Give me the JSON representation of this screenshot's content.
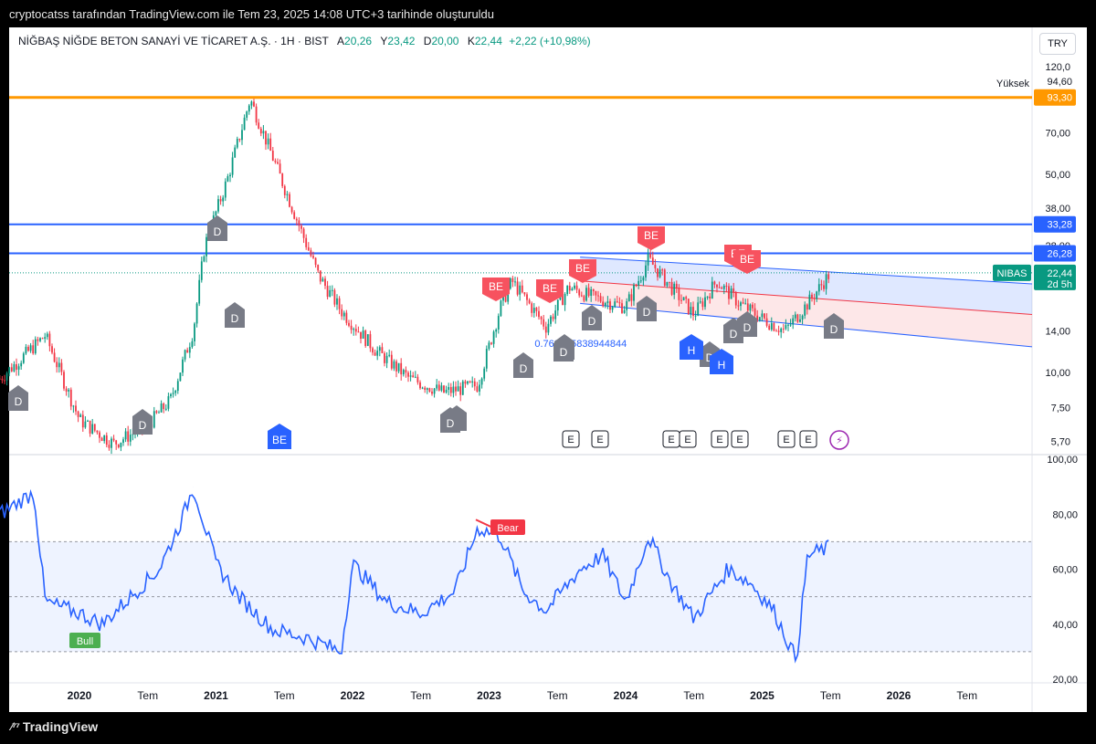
{
  "header": {
    "caption": "cryptocatss tarafından TradingView.com ile Tem 23, 2025 14:08 UTC+3 tarihinde oluşturuldu"
  },
  "symbol": {
    "name": "NİĞBAŞ NİĞDE BETON SANAYİ VE TİCARET A.Ş. · 1H · BIST",
    "o_label": "A",
    "o_value": "20,26",
    "h_label": "Y",
    "h_value": "23,42",
    "l_label": "D",
    "l_value": "20,00",
    "c_label": "K",
    "c_value": "22,44",
    "change": "+2,22 (+10,98%)",
    "currency": "TRY",
    "ticker": "NIBAS",
    "last_price": "22,44",
    "countdown": "2d 5h"
  },
  "price_axis": {
    "ticks": [
      "120,0",
      "70,00",
      "50,00",
      "38,00",
      "28,00",
      "14,00",
      "10,00",
      "7,50",
      "5,70"
    ],
    "high_label": "Yüksek",
    "high_value": "94,60",
    "orange_level": "93,30",
    "blue_level_1": "33,28",
    "blue_level_2": "26,28"
  },
  "rsi_axis": {
    "ticks": [
      "100,00",
      "80,00",
      "60,00",
      "40,00",
      "20,00"
    ]
  },
  "time_axis": {
    "labels": [
      "2020",
      "Tem",
      "2021",
      "Tem",
      "2022",
      "Tem",
      "2023",
      "Tem",
      "2024",
      "Tem",
      "2025",
      "Tem",
      "2026",
      "Tem"
    ]
  },
  "annotations": {
    "be_label": "BE",
    "d_label": "D",
    "h_label": "H",
    "e_label": "E",
    "bull_label": "Bull",
    "bear_label": "Bear",
    "channel_text": "0.768885838944844"
  },
  "footer": {
    "brand": "TradingView"
  },
  "colors": {
    "up": "#089981",
    "down": "#f23645",
    "orange": "#ff9800",
    "blue": "#2962ff",
    "rsi": "#2962ff",
    "marker_grey": "#787b86",
    "marker_red": "#f7525f"
  },
  "chart_data": [
    {
      "type": "line",
      "title": "NİĞBAŞ NİĞDE BETON SANAYİ VE TİCARET A.Ş. · 1H · BIST",
      "xlabel": "",
      "ylabel": "",
      "log_scale": true,
      "ylim": [
        5.2,
        130
      ],
      "x": [
        "2019-06",
        "2019-10",
        "2020-01",
        "2020-04",
        "2020-07",
        "2020-09",
        "2020-11",
        "2020-12",
        "2021-02",
        "2021-04",
        "2021-07",
        "2021-10",
        "2021-12",
        "2022-03",
        "2022-06",
        "2022-09",
        "2022-12",
        "2023-02",
        "2023-03",
        "2023-06",
        "2023-08",
        "2023-10",
        "2024-01",
        "2024-03",
        "2024-05",
        "2024-07",
        "2024-09",
        "2024-11",
        "2025-01",
        "2025-03",
        "2025-05",
        "2025-07"
      ],
      "series": [
        {
          "values": [
            9.5,
            13.5,
            6.8,
            5.6,
            6.5,
            8.0,
            14.0,
            28.0,
            48.0,
            92.0,
            45.0,
            22.0,
            16.5,
            12.0,
            9.5,
            8.5,
            9.0,
            17.0,
            21.0,
            14.5,
            20.0,
            18.5,
            17.0,
            25.0,
            20.0,
            16.0,
            21.0,
            17.5,
            15.5,
            14.0,
            17.5,
            22.44
          ]
        }
      ],
      "horizontal_levels": [
        93.3,
        33.28,
        26.28
      ]
    },
    {
      "type": "line",
      "title": "",
      "ylim": [
        20,
        100
      ],
      "x": [
        "2019-06",
        "2019-09",
        "2019-10",
        "2020-01",
        "2020-03",
        "2020-05",
        "2020-08",
        "2020-10",
        "2020-11",
        "2021-01",
        "2021-03",
        "2021-06",
        "2021-09",
        "2021-12",
        "2022-01",
        "2022-04",
        "2022-07",
        "2022-10",
        "2022-12",
        "2023-02",
        "2023-04",
        "2023-06",
        "2023-09",
        "2023-11",
        "2024-01",
        "2024-03",
        "2024-05",
        "2024-07",
        "2024-10",
        "2024-12",
        "2025-02",
        "2025-04",
        "2025-05",
        "2025-07"
      ],
      "series": [
        {
          "values": [
            80,
            88,
            48,
            44,
            40,
            48,
            60,
            78,
            90,
            62,
            50,
            38,
            35,
            30,
            62,
            48,
            44,
            52,
            75,
            72,
            52,
            45,
            60,
            65,
            48,
            72,
            55,
            42,
            60,
            55,
            45,
            27,
            65,
            68
          ]
        }
      ],
      "bands": [
        30,
        50,
        70
      ]
    }
  ]
}
